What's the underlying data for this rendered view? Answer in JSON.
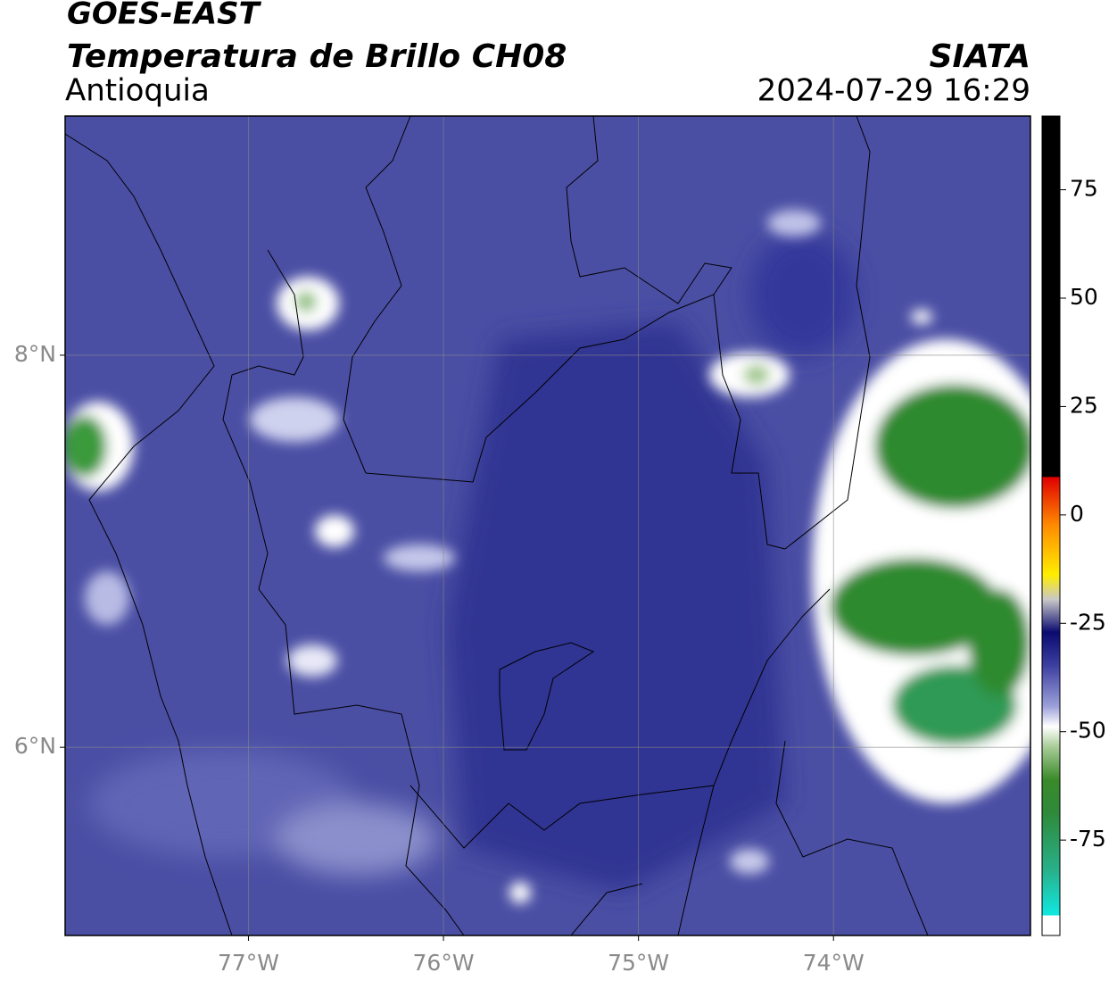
{
  "header": {
    "satellite": "GOES-EAST",
    "product": "Temperatura de Brillo CH08",
    "agency": "SIATA",
    "region": "Antioquia",
    "datetime": "2024-07-29 16:29"
  },
  "map": {
    "xlim": [
      -77.94,
      -72.99
    ],
    "ylim": [
      5.04,
      9.22
    ],
    "xticks": [
      {
        "value": -77,
        "label": "77°W"
      },
      {
        "value": -76,
        "label": "76°W"
      },
      {
        "value": -75,
        "label": "75°W"
      },
      {
        "value": -74,
        "label": "74°W"
      }
    ],
    "yticks": [
      {
        "value": 6,
        "label": "6°N"
      },
      {
        "value": 8,
        "label": "8°N"
      }
    ],
    "grid": true
  },
  "colorbar": {
    "lim": [
      -97,
      92
    ],
    "ticks": [
      -75,
      -50,
      -25,
      0,
      25,
      50,
      75
    ]
  }
}
